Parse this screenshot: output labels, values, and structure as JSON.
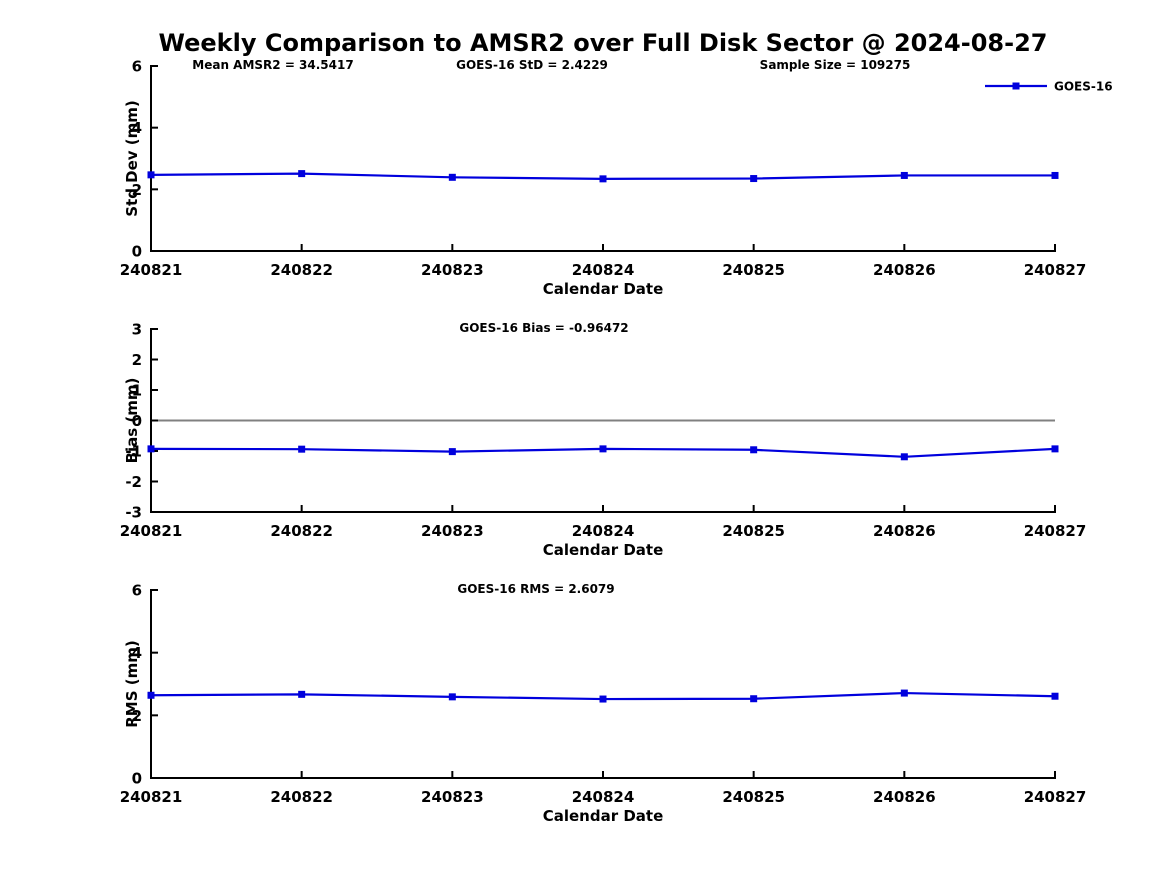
{
  "title": "Weekly Comparison to AMSR2 over Full Disk Sector @ 2024-08-27",
  "colors": {
    "line": "#0000DD",
    "marker": "#0000DD",
    "zero_line": "#808080",
    "axis": "#000000",
    "text": "#000000",
    "background": "#ffffff"
  },
  "legend": {
    "label": "GOES-16",
    "marker": "square"
  },
  "chart_data": [
    {
      "type": "line",
      "name": "std-dev",
      "ylabel": "Std Dev (mm)",
      "xlabel": "Calendar Date",
      "ylim": [
        0,
        6
      ],
      "yticks": [
        0,
        2,
        4,
        6
      ],
      "categories": [
        "240821",
        "240822",
        "240823",
        "240824",
        "240825",
        "240826",
        "240827"
      ],
      "series": [
        {
          "name": "GOES-16",
          "values": [
            2.47,
            2.51,
            2.39,
            2.34,
            2.35,
            2.45,
            2.45
          ]
        }
      ],
      "annotations": [
        {
          "text": "Mean AMSR2 = 34.5417",
          "x_center": 273
        },
        {
          "text": "GOES-16 StD = 2.4229",
          "x_center": 532
        },
        {
          "text": "Sample Size = 109275",
          "x_center": 835
        }
      ],
      "zero_line": false,
      "show_legend": true,
      "legend_position": "top-right",
      "grid": false
    },
    {
      "type": "line",
      "name": "bias",
      "ylabel": "Bias (mm)",
      "xlabel": "Calendar Date",
      "ylim": [
        -3,
        3
      ],
      "yticks": [
        -3,
        -2,
        -1,
        0,
        1,
        2,
        3
      ],
      "categories": [
        "240821",
        "240822",
        "240823",
        "240824",
        "240825",
        "240826",
        "240827"
      ],
      "series": [
        {
          "name": "GOES-16",
          "values": [
            -0.93,
            -0.94,
            -1.02,
            -0.93,
            -0.96,
            -1.19,
            -0.93
          ]
        }
      ],
      "annotations": [
        {
          "text": "GOES-16 Bias  = -0.96472",
          "x_center": 544
        }
      ],
      "zero_line": true,
      "show_legend": false,
      "grid": false
    },
    {
      "type": "line",
      "name": "rms",
      "ylabel": "RMS (mm)",
      "xlabel": "Calendar Date",
      "ylim": [
        0,
        6
      ],
      "yticks": [
        0,
        2,
        4,
        6
      ],
      "categories": [
        "240821",
        "240822",
        "240823",
        "240824",
        "240825",
        "240826",
        "240827"
      ],
      "series": [
        {
          "name": "GOES-16",
          "values": [
            2.64,
            2.67,
            2.59,
            2.52,
            2.53,
            2.71,
            2.61
          ]
        }
      ],
      "annotations": [
        {
          "text": "GOES-16 RMS = 2.6079",
          "x_center": 536
        }
      ],
      "zero_line": false,
      "show_legend": false,
      "grid": false
    }
  ]
}
